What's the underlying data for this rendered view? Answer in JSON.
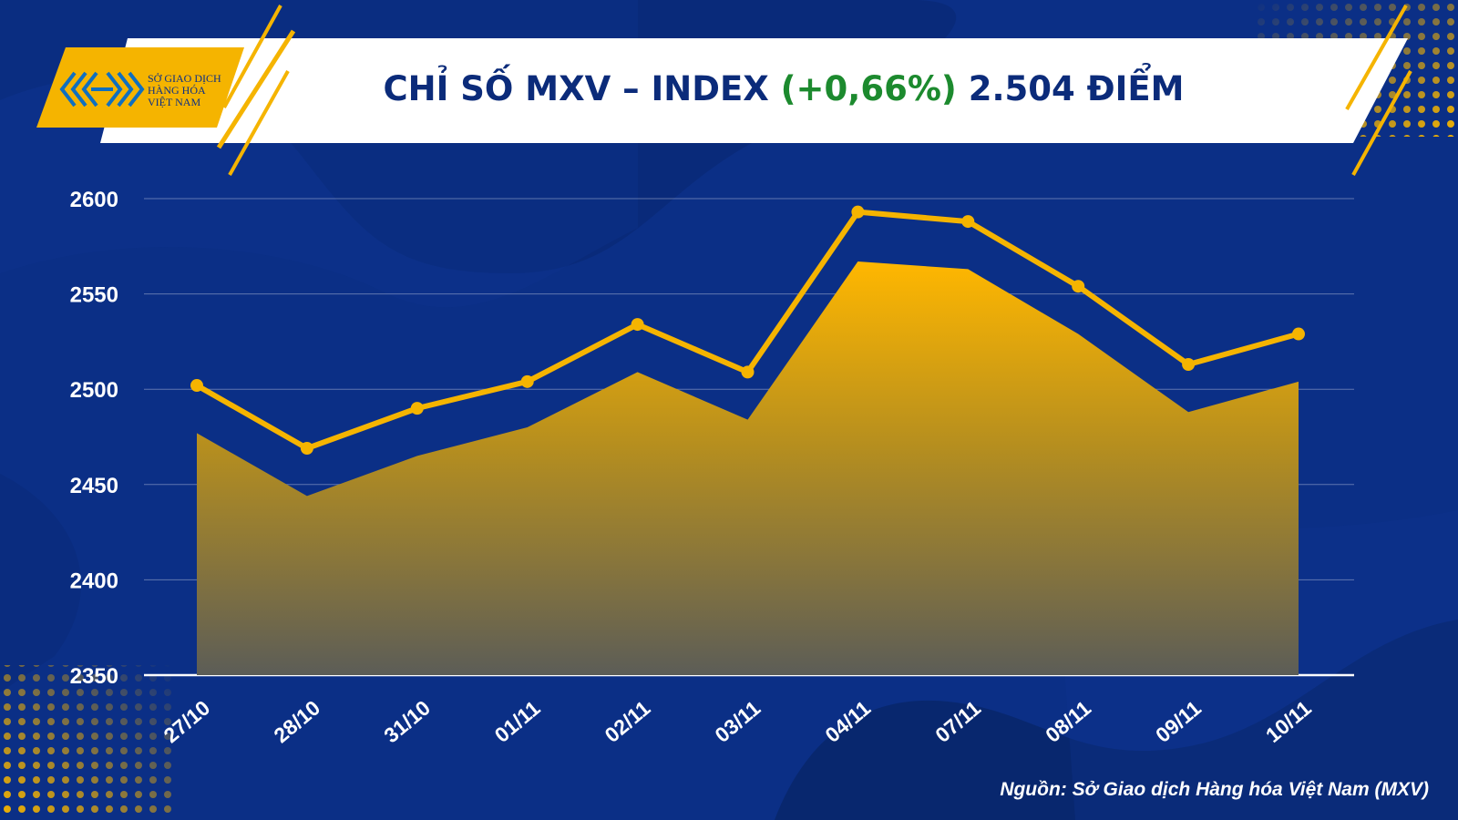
{
  "header": {
    "logo_lines": [
      "SỞ GIAO DỊCH",
      "HÀNG HÓA",
      "VIỆT NAM"
    ],
    "title_prefix": "CHỈ SỐ MXV – INDEX",
    "title_change": "(+0,66%)",
    "title_suffix": "2.504 ĐIỂM"
  },
  "colors": {
    "background": "#0b2f86",
    "accent": "#f5b400",
    "change_text": "#1c8a2e",
    "title_text": "#0b2b7a"
  },
  "chart_data": {
    "type": "line",
    "categories": [
      "27/10",
      "28/10",
      "31/10",
      "01/11",
      "02/11",
      "03/11",
      "04/11",
      "07/11",
      "08/11",
      "09/11",
      "10/11"
    ],
    "series": [
      {
        "values": [
          2502,
          2469,
          2490,
          2504,
          2534,
          2509,
          2593,
          2588,
          2554,
          2513,
          2529
        ]
      },
      {
        "values": [
          2477,
          2444,
          2465,
          2480,
          2509,
          2484,
          2567,
          2563,
          2529,
          2488,
          2504
        ]
      }
    ],
    "ylim": [
      2350,
      2600
    ],
    "yticks": [
      2350,
      2400,
      2450,
      2500,
      2550,
      2600
    ],
    "grid": true
  },
  "source": "Nguồn: Sở Giao dịch Hàng hóa Việt Nam (MXV)"
}
